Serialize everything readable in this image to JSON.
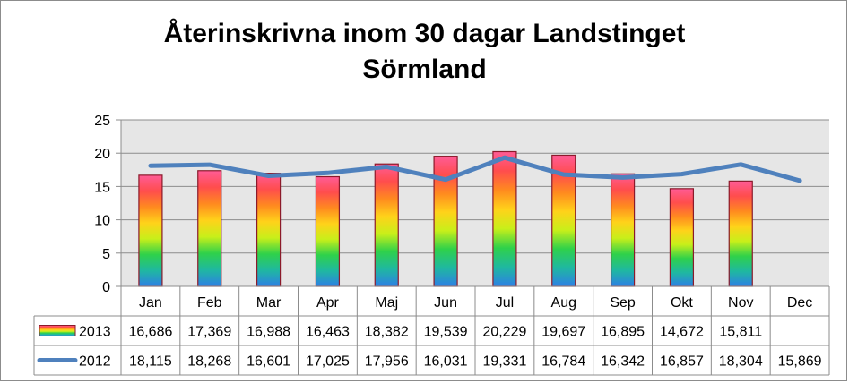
{
  "chart_data": {
    "type": "bar",
    "title": "Återinskrivna inom 30 dagar Landstinget",
    "title_line2": "Sörmland",
    "categories": [
      "Jan",
      "Feb",
      "Mar",
      "Apr",
      "Maj",
      "Jun",
      "Jul",
      "Aug",
      "Sep",
      "Okt",
      "Nov",
      "Dec"
    ],
    "yticks": [
      "0",
      "5",
      "10",
      "15",
      "20",
      "25"
    ],
    "ylim": [
      0,
      25
    ],
    "grid": true,
    "legend": "data-table",
    "series": [
      {
        "name": "2013",
        "kind": "bar",
        "values": [
          16.686,
          17.369,
          16.988,
          16.463,
          18.382,
          19.539,
          20.229,
          19.697,
          16.895,
          14.672,
          15.811,
          null
        ],
        "labels": [
          "16,686",
          "17,369",
          "16,988",
          "16,463",
          "18,382",
          "19,539",
          "20,229",
          "19,697",
          "16,895",
          "14,672",
          "15,811",
          ""
        ]
      },
      {
        "name": "2012",
        "kind": "line",
        "color": "#4f81bd",
        "values": [
          18.115,
          18.268,
          16.601,
          17.025,
          17.956,
          16.031,
          19.331,
          16.784,
          16.342,
          16.857,
          18.304,
          15.869
        ],
        "labels": [
          "18,115",
          "18,268",
          "16,601",
          "17,025",
          "17,956",
          "16,031",
          "19,331",
          "16,784",
          "16,342",
          "16,857",
          "18,304",
          "15,869"
        ]
      }
    ],
    "colors": {
      "plot_bg": "#e6e6e6",
      "grid": "#8c8c8c",
      "bar_outline": "#8b1a2a",
      "line": "#4f81bd",
      "rainbow": [
        "#ff5c96",
        "#ff4d4d",
        "#ff8a1f",
        "#ffd21a",
        "#c8ef1a",
        "#2fd14a",
        "#1fb8a0",
        "#2d7fe6"
      ]
    }
  }
}
